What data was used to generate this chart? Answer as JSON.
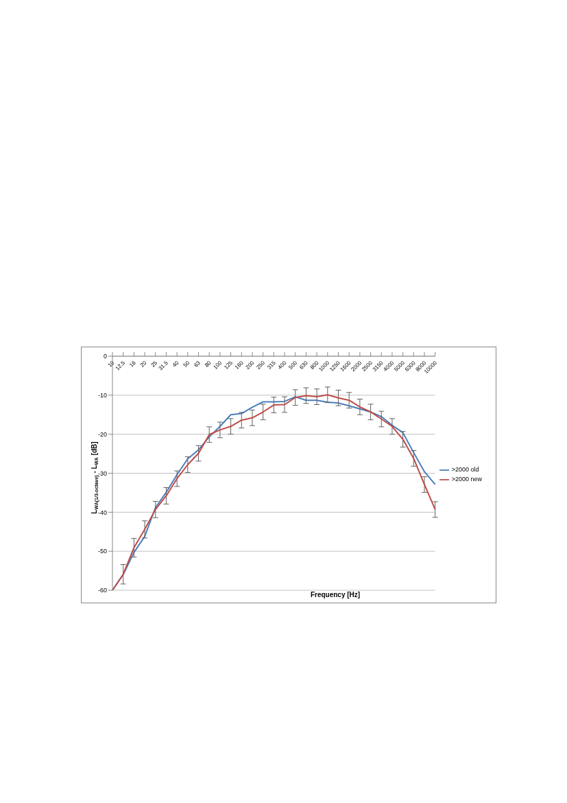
{
  "chart_data": {
    "type": "line",
    "xlabel": "Frequency [Hz]",
    "ylabel": "L$_{WA(1/3-octave)}$ - L$_{WA}$ [dB]",
    "categories": [
      "10",
      "12.5",
      "16",
      "20",
      "25",
      "31.5",
      "40",
      "50",
      "63",
      "80",
      "100",
      "125",
      "160",
      "200",
      "250",
      "315",
      "400",
      "500",
      "630",
      "800",
      "1000",
      "1250",
      "1600",
      "2000",
      "2500",
      "3150",
      "4000",
      "5000",
      "6300",
      "8000",
      "10000"
    ],
    "series": [
      {
        "name": ">2000 old",
        "color": "#4a7ebb",
        "values": [
          -60,
          -56,
          -50.3,
          -46.2,
          -38.8,
          -34.9,
          -30.4,
          -26.3,
          -24,
          -20.7,
          -18,
          -15,
          -14.7,
          -13.1,
          -11.7,
          -11.7,
          -11.6,
          -10.4,
          -11.3,
          -11.3,
          -11.8,
          -12,
          -12.7,
          -13.5,
          -14.3,
          -15.5,
          -17.7,
          -19.6,
          -24.7,
          -29.6,
          -32.9
        ]
      },
      {
        "name": ">2000 new",
        "color": "#be4b48",
        "values": [
          -60,
          -55.9,
          -49.1,
          -44.4,
          -39.3,
          -35.8,
          -31.4,
          -27.8,
          -24.9,
          -20.1,
          -18.9,
          -18,
          -16.4,
          -15.8,
          -14.3,
          -12.5,
          -12.4,
          -10.6,
          -10.1,
          -10.4,
          -9.9,
          -10.7,
          -11.3,
          -13,
          -14.3,
          -16.1,
          -18,
          -21.3,
          -26.2,
          -32.9,
          -39.3
        ],
        "errors": [
          null,
          2.5,
          2.4,
          2.2,
          2.1,
          2.1,
          2,
          2,
          2,
          2,
          2,
          2,
          2,
          2,
          2,
          2,
          2,
          2,
          2,
          2,
          2,
          2,
          2,
          2,
          2,
          2,
          2,
          2,
          2,
          2,
          2
        ]
      }
    ],
    "ylim": [
      -60,
      0
    ],
    "yticks": [
      0,
      -10,
      -20,
      -30,
      -40,
      -50,
      -60
    ],
    "grid": "y",
    "legend": "right",
    "marker": "none",
    "line_style": "solid"
  }
}
